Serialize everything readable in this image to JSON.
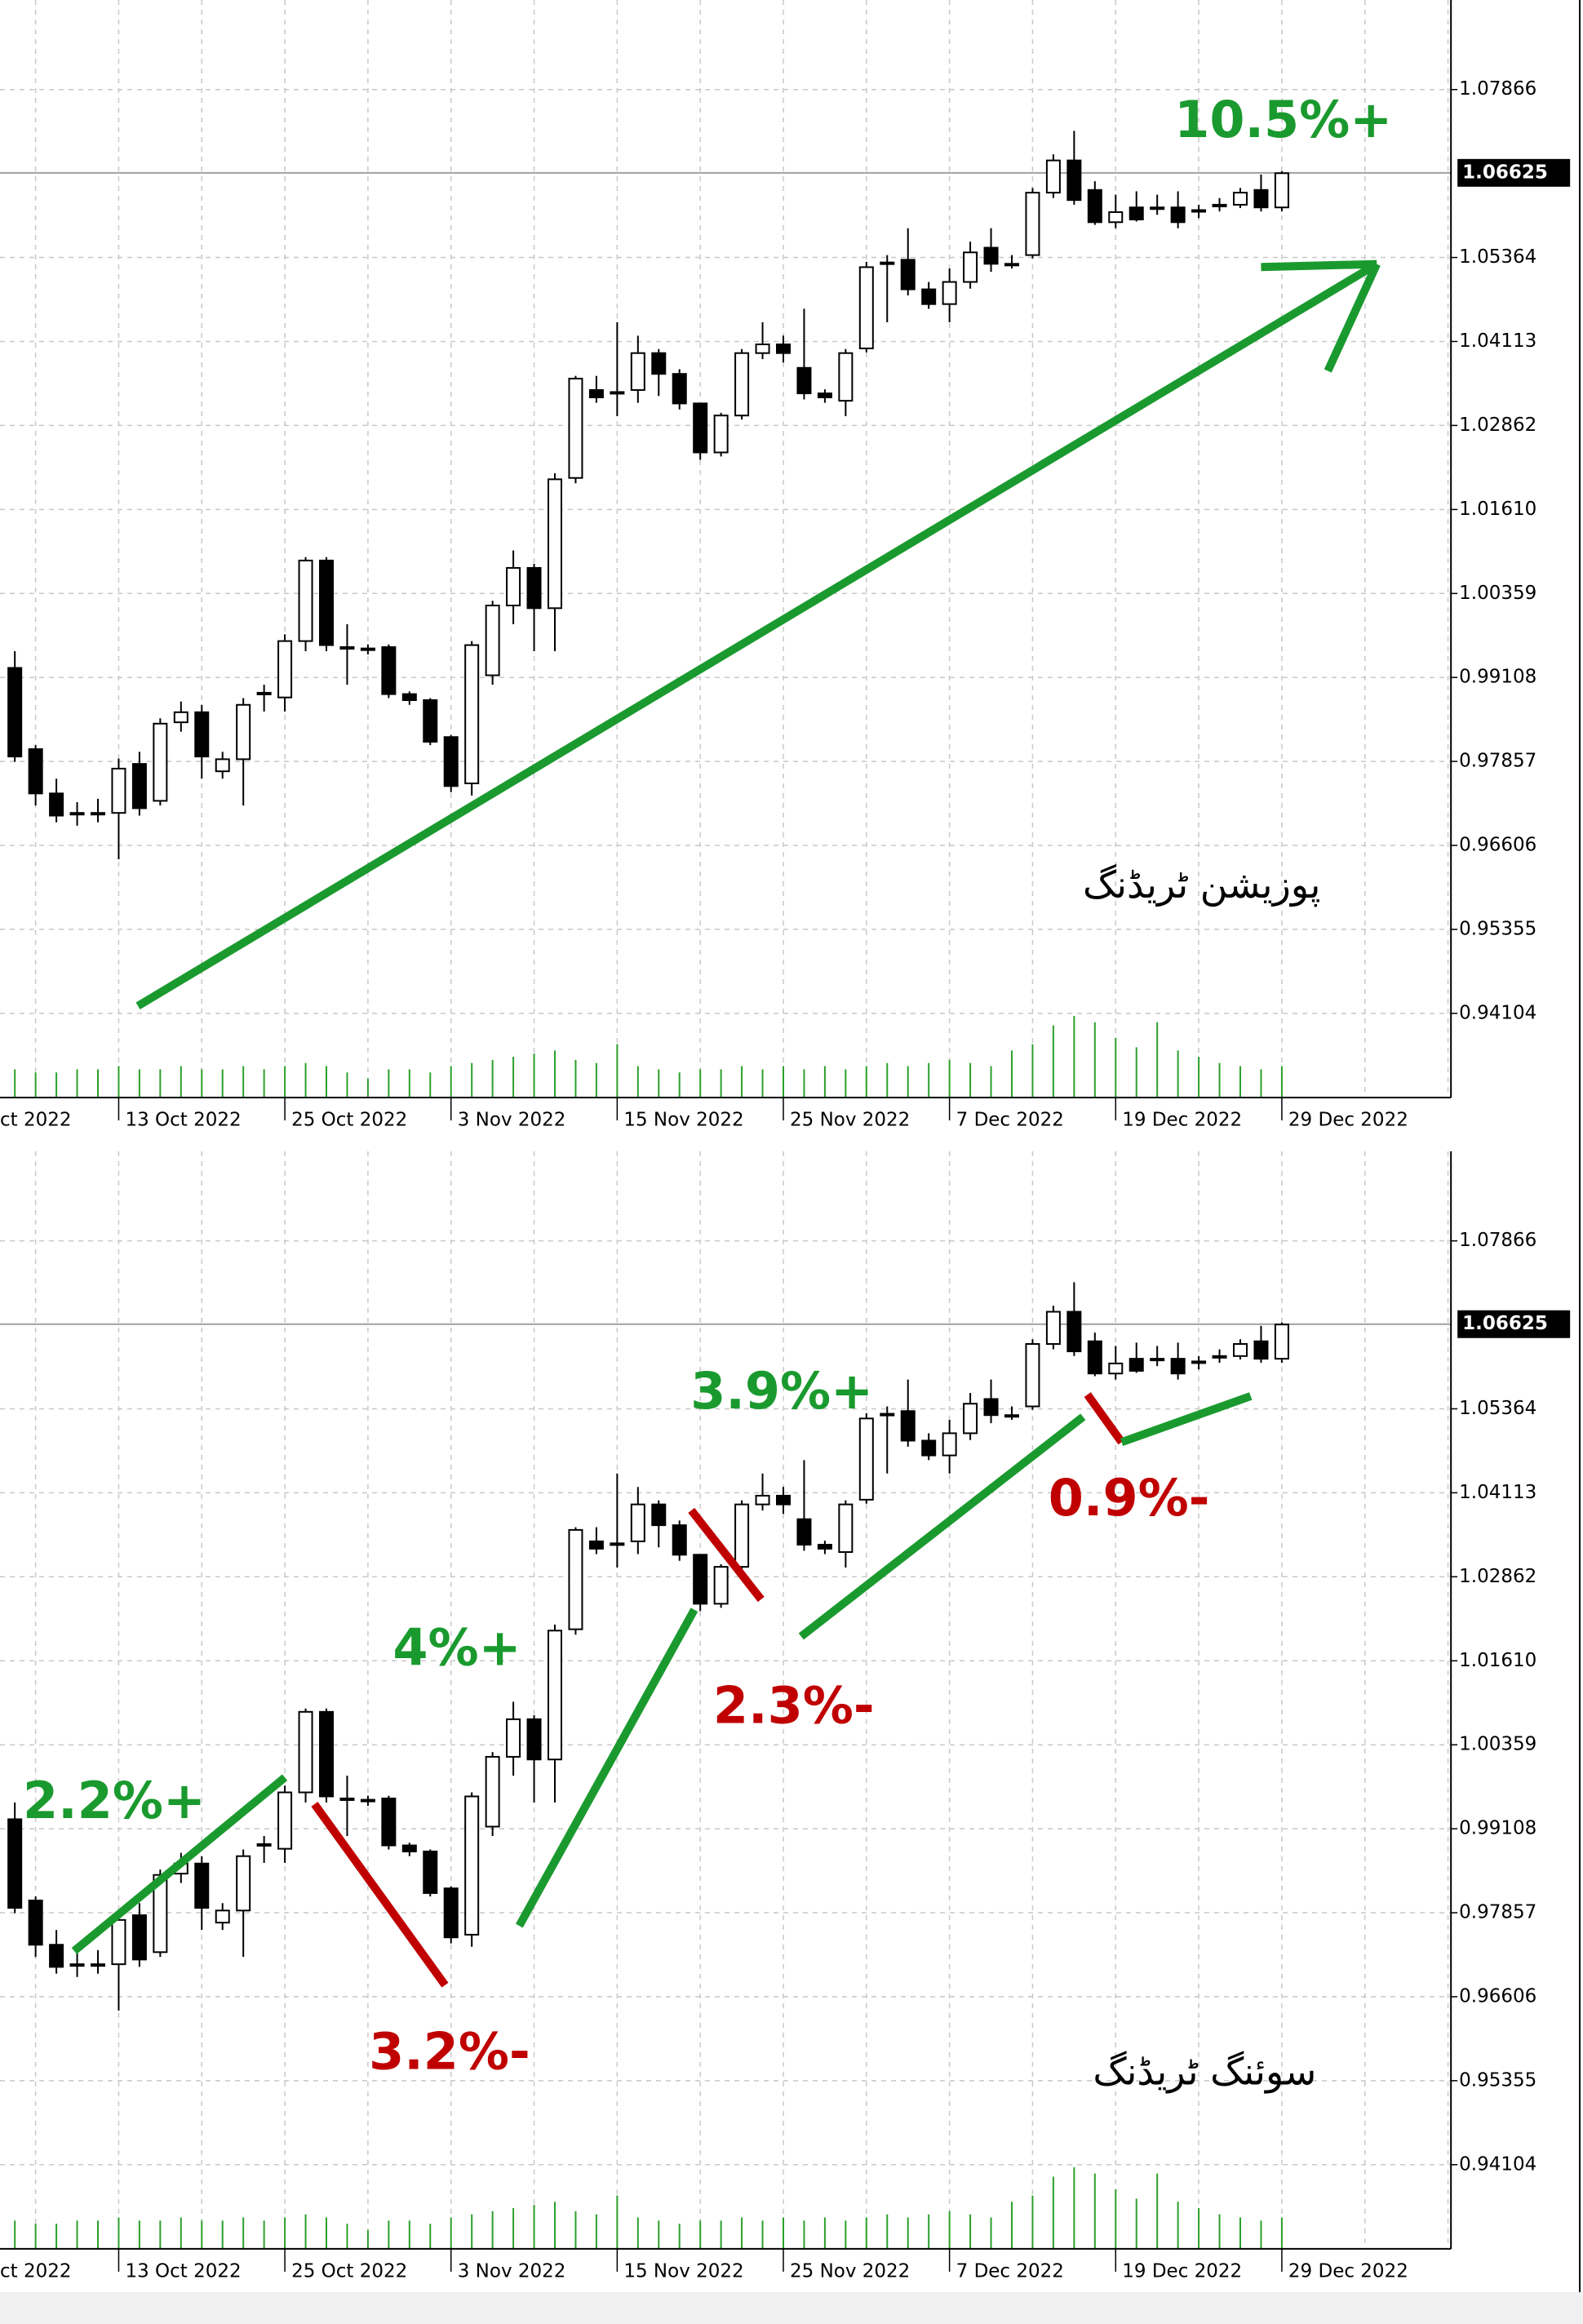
{
  "chart_data": [
    {
      "type": "candlestick",
      "categories": [
        "ct 2022",
        null,
        null,
        null,
        null,
        "13 Oct 2022",
        null,
        null,
        null,
        null,
        null,
        null,
        null,
        "25 Oct 2022",
        null,
        null,
        null,
        null,
        null,
        null,
        null,
        "3 Nov 2022",
        null,
        null,
        null,
        null,
        null,
        null,
        null,
        "15 Nov 2022",
        null,
        null,
        null,
        null,
        null,
        null,
        null,
        "25 Nov 2022",
        null,
        null,
        null,
        null,
        null,
        null,
        null,
        "7 Dec 2022",
        null,
        null,
        null,
        null,
        null,
        null,
        null,
        "19 Dec 2022",
        null,
        null,
        null,
        null,
        null,
        null,
        null,
        "29 Dec 2022"
      ],
      "open": [
        0.9925,
        0.9804,
        0.9738,
        0.9709,
        0.9708,
        0.9709,
        0.9782,
        0.9727,
        0.9844,
        0.9859,
        0.9771,
        0.9789,
        0.9886,
        0.9881,
        0.9965,
        1.0085,
        0.9954,
        0.9954,
        0.9956,
        0.9886,
        0.9877,
        0.9822,
        0.9753,
        0.9914,
        1.0018,
        1.0074,
        1.0014,
        1.0208,
        1.0339,
        1.0334,
        1.0339,
        1.0394,
        1.0363,
        1.0319,
        1.0246,
        1.0301,
        1.0394,
        1.0407,
        1.0372,
        1.0334,
        1.0323,
        1.0401,
        1.0527,
        1.0533,
        1.0489,
        1.0467,
        1.05,
        1.0551,
        1.0527,
        1.054,
        1.0633,
        1.0681,
        1.0637,
        1.0589,
        1.0611,
        1.0611,
        1.0611,
        1.0606,
        1.0615,
        1.0615,
        1.0637,
        1.0611
      ],
      "high": [
        0.995,
        0.981,
        0.976,
        0.9725,
        0.973,
        0.979,
        0.98,
        0.985,
        0.9875,
        0.987,
        0.98,
        0.988,
        0.99,
        0.9975,
        1.009,
        1.009,
        0.999,
        0.996,
        0.996,
        0.989,
        0.988,
        0.9825,
        0.9965,
        1.0025,
        1.01,
        1.008,
        1.0215,
        1.036,
        1.036,
        1.044,
        1.042,
        1.04,
        1.037,
        1.032,
        1.0305,
        1.04,
        1.044,
        1.042,
        1.046,
        1.034,
        1.04,
        1.053,
        1.054,
        1.058,
        1.05,
        1.052,
        1.056,
        1.058,
        1.054,
        1.064,
        1.069,
        1.0725,
        1.065,
        1.063,
        1.0635,
        1.063,
        1.0635,
        1.0615,
        1.0625,
        1.064,
        1.066,
        1.0665
      ],
      "low": [
        0.9785,
        0.972,
        0.9695,
        0.969,
        0.9695,
        0.964,
        0.9705,
        0.972,
        0.983,
        0.976,
        0.976,
        0.972,
        0.986,
        0.986,
        0.995,
        0.995,
        0.99,
        0.9945,
        0.988,
        0.987,
        0.981,
        0.974,
        0.9735,
        0.99,
        0.999,
        0.995,
        0.995,
        1.02,
        1.032,
        1.03,
        1.032,
        1.033,
        1.031,
        1.0235,
        1.024,
        1.0295,
        1.0385,
        1.038,
        1.0325,
        1.032,
        1.03,
        1.0395,
        1.044,
        1.048,
        1.046,
        1.044,
        1.049,
        1.0515,
        1.052,
        1.0535,
        1.0625,
        1.0615,
        1.0585,
        1.058,
        1.059,
        1.06,
        1.058,
        1.0595,
        1.0605,
        1.061,
        1.0605,
        1.0605
      ],
      "close": [
        0.9793,
        0.9738,
        0.9705,
        0.9707,
        0.9709,
        0.9775,
        0.9716,
        0.9842,
        0.9859,
        0.9793,
        0.9789,
        0.987,
        0.9888,
        0.9965,
        1.0085,
        0.9959,
        0.9956,
        0.9952,
        0.9886,
        0.9877,
        0.9815,
        0.9749,
        0.9959,
        1.0018,
        1.0074,
        1.0014,
        1.0206,
        1.0356,
        1.0328,
        1.0336,
        1.0394,
        1.0363,
        1.0319,
        1.0246,
        1.0301,
        1.0394,
        1.0407,
        1.0394,
        1.0334,
        1.0328,
        1.0394,
        1.0522,
        1.0529,
        1.0489,
        1.0467,
        1.05,
        1.0544,
        1.0527,
        1.0525,
        1.0633,
        1.0681,
        1.0622,
        1.0589,
        1.0604,
        1.0593,
        1.061,
        1.0589,
        1.0607,
        1.0614,
        1.0633,
        1.0611,
        1.0662
      ],
      "volume": [
        18,
        16,
        16,
        18,
        18,
        20,
        18,
        18,
        20,
        18,
        18,
        20,
        18,
        20,
        22,
        20,
        16,
        12,
        18,
        18,
        16,
        20,
        22,
        24,
        26,
        28,
        30,
        24,
        22,
        34,
        20,
        18,
        16,
        18,
        18,
        20,
        18,
        20,
        18,
        20,
        18,
        20,
        22,
        20,
        22,
        24,
        22,
        20,
        30,
        34,
        46,
        52,
        48,
        38,
        32,
        48,
        30,
        26,
        22,
        20,
        18,
        20
      ],
      "up_color": "#ffffff",
      "down_color": "#000000",
      "volume_color": "#2ca02c",
      "ylim": [
        0.9285,
        1.092
      ],
      "yticks": [
        0.94104,
        0.95355,
        0.96606,
        0.97857,
        0.99108,
        1.00359,
        {
          "value": 1.0161,
          "label": "1.01610"
        },
        1.02862,
        1.04113,
        1.05364,
        1.07866
      ],
      "grid": true,
      "current_price": 1.06625,
      "annotations": [
        {
          "text": "10.5%+",
          "color": "#1a9a2e"
        },
        {
          "text": "پوزیشن ٹریڈنگ",
          "color": "#000000"
        }
      ]
    },
    {
      "type": "candlestick",
      "categories": [
        "ct 2022",
        null,
        null,
        null,
        null,
        "13 Oct 2022",
        null,
        null,
        null,
        null,
        null,
        null,
        null,
        "25 Oct 2022",
        null,
        null,
        null,
        null,
        null,
        null,
        null,
        "3 Nov 2022",
        null,
        null,
        null,
        null,
        null,
        null,
        null,
        "15 Nov 2022",
        null,
        null,
        null,
        null,
        null,
        null,
        null,
        "25 Nov 2022",
        null,
        null,
        null,
        null,
        null,
        null,
        null,
        "7 Dec 2022",
        null,
        null,
        null,
        null,
        null,
        null,
        null,
        "19 Dec 2022",
        null,
        null,
        null,
        null,
        null,
        null,
        null,
        "29 Dec 2022"
      ],
      "open": [
        0.9925,
        0.9804,
        0.9738,
        0.9709,
        0.9708,
        0.9709,
        0.9782,
        0.9727,
        0.9844,
        0.9859,
        0.9771,
        0.9789,
        0.9886,
        0.9881,
        0.9965,
        1.0085,
        0.9954,
        0.9954,
        0.9956,
        0.9886,
        0.9877,
        0.9822,
        0.9753,
        0.9914,
        1.0018,
        1.0074,
        1.0014,
        1.0208,
        1.0339,
        1.0334,
        1.0339,
        1.0394,
        1.0363,
        1.0319,
        1.0246,
        1.0301,
        1.0394,
        1.0407,
        1.0372,
        1.0334,
        1.0323,
        1.0401,
        1.0527,
        1.0533,
        1.0489,
        1.0467,
        1.05,
        1.0551,
        1.0527,
        1.054,
        1.0633,
        1.0681,
        1.0637,
        1.0589,
        1.0611,
        1.0611,
        1.0611,
        1.0606,
        1.0615,
        1.0615,
        1.0637,
        1.0611
      ],
      "high": [
        0.995,
        0.981,
        0.976,
        0.9725,
        0.973,
        0.979,
        0.98,
        0.985,
        0.9875,
        0.987,
        0.98,
        0.988,
        0.99,
        0.9975,
        1.009,
        1.009,
        0.999,
        0.996,
        0.996,
        0.989,
        0.988,
        0.9825,
        0.9965,
        1.0025,
        1.01,
        1.008,
        1.0215,
        1.036,
        1.036,
        1.044,
        1.042,
        1.04,
        1.037,
        1.032,
        1.0305,
        1.04,
        1.044,
        1.042,
        1.046,
        1.034,
        1.04,
        1.053,
        1.054,
        1.058,
        1.05,
        1.052,
        1.056,
        1.058,
        1.054,
        1.064,
        1.069,
        1.0725,
        1.065,
        1.063,
        1.0635,
        1.063,
        1.0635,
        1.0615,
        1.0625,
        1.064,
        1.066,
        1.0665
      ],
      "low": [
        0.9785,
        0.972,
        0.9695,
        0.969,
        0.9695,
        0.964,
        0.9705,
        0.972,
        0.983,
        0.976,
        0.976,
        0.972,
        0.986,
        0.986,
        0.995,
        0.995,
        0.99,
        0.9945,
        0.988,
        0.987,
        0.981,
        0.974,
        0.9735,
        0.99,
        0.999,
        0.995,
        0.995,
        1.02,
        1.032,
        1.03,
        1.032,
        1.033,
        1.031,
        1.0235,
        1.024,
        1.0295,
        1.0385,
        1.038,
        1.0325,
        1.032,
        1.03,
        1.0395,
        1.044,
        1.048,
        1.046,
        1.044,
        1.049,
        1.0515,
        1.052,
        1.0535,
        1.0625,
        1.0615,
        1.0585,
        1.058,
        1.059,
        1.06,
        1.058,
        1.0595,
        1.0605,
        1.061,
        1.0605,
        1.0605
      ],
      "close": [
        0.9793,
        0.9738,
        0.9705,
        0.9707,
        0.9709,
        0.9775,
        0.9716,
        0.9842,
        0.9859,
        0.9793,
        0.9789,
        0.987,
        0.9888,
        0.9965,
        1.0085,
        0.9959,
        0.9956,
        0.9952,
        0.9886,
        0.9877,
        0.9815,
        0.9749,
        0.9959,
        1.0018,
        1.0074,
        1.0014,
        1.0206,
        1.0356,
        1.0328,
        1.0336,
        1.0394,
        1.0363,
        1.0319,
        1.0246,
        1.0301,
        1.0394,
        1.0407,
        1.0394,
        1.0334,
        1.0328,
        1.0394,
        1.0522,
        1.0529,
        1.0489,
        1.0467,
        1.05,
        1.0544,
        1.0527,
        1.0525,
        1.0633,
        1.0681,
        1.0622,
        1.0589,
        1.0604,
        1.0593,
        1.061,
        1.0589,
        1.0607,
        1.0614,
        1.0633,
        1.0611,
        1.0662
      ],
      "volume": [
        18,
        16,
        16,
        18,
        18,
        20,
        18,
        18,
        20,
        18,
        18,
        20,
        18,
        20,
        22,
        20,
        16,
        12,
        18,
        18,
        16,
        20,
        22,
        24,
        26,
        28,
        30,
        24,
        22,
        34,
        20,
        18,
        16,
        18,
        18,
        20,
        18,
        20,
        18,
        20,
        18,
        20,
        22,
        20,
        22,
        24,
        22,
        20,
        30,
        34,
        46,
        52,
        48,
        38,
        32,
        48,
        30,
        26,
        22,
        20,
        18,
        20
      ],
      "up_color": "#ffffff",
      "down_color": "#000000",
      "volume_color": "#2ca02c",
      "ylim": [
        0.9285,
        1.092
      ],
      "yticks": [
        0.94104,
        0.95355,
        0.96606,
        0.97857,
        0.99108,
        1.00359,
        {
          "value": 1.0161,
          "label": "1.01610"
        },
        1.02862,
        1.04113,
        1.05364,
        1.07866
      ],
      "grid": true,
      "current_price": 1.06625,
      "annotations": [
        {
          "text": "2.2%+",
          "color": "#1a9a2e"
        },
        {
          "text": "3.2%-",
          "color": "#c00000"
        },
        {
          "text": "4%+",
          "color": "#1a9a2e"
        },
        {
          "text": "2.3%-",
          "color": "#c00000"
        },
        {
          "text": "3.9%+",
          "color": "#1a9a2e"
        },
        {
          "text": "0.9%-",
          "color": "#c00000"
        },
        {
          "text": "سوئنگ ٹریڈنگ",
          "color": "#000000"
        }
      ]
    }
  ]
}
